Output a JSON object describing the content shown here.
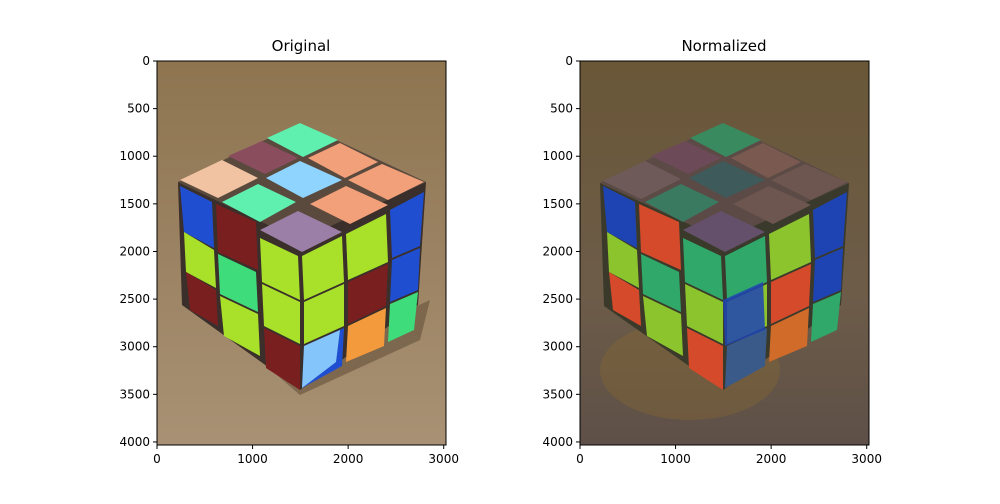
{
  "figure": {
    "panels": [
      {
        "title": "Original",
        "kind": "image",
        "xticks": [
          0,
          1000,
          2000,
          3000
        ],
        "yticks": [
          0,
          500,
          1000,
          1500,
          2000,
          2500,
          3000,
          3500,
          4000
        ],
        "xlim": [
          0,
          3024
        ],
        "ylim": [
          4032,
          0
        ]
      },
      {
        "title": "Normalized",
        "kind": "image",
        "xticks": [
          0,
          1000,
          2000,
          3000
        ],
        "yticks": [
          0,
          500,
          1000,
          1500,
          2000,
          2500,
          3000,
          3500,
          4000
        ],
        "xlim": [
          0,
          3024
        ],
        "ylim": [
          4032,
          0
        ]
      }
    ]
  },
  "chart_data": [
    {
      "type": "image",
      "title": "Original",
      "xlabel": "",
      "ylabel": "",
      "xlim": [
        0,
        3024
      ],
      "ylim": [
        4032,
        0
      ],
      "xticks": [
        0,
        1000,
        2000,
        3000
      ],
      "yticks": [
        0,
        500,
        1000,
        1500,
        2000,
        2500,
        3000,
        3500,
        4000
      ],
      "grid": false,
      "colors": {
        "background": "#9a8463",
        "blue": "#1f4fd0",
        "lime": "#a8e02a",
        "green": "#3edc7a",
        "maroon": "#7a1f1f",
        "peach": "#f2a07a",
        "mint": "#5ff0b0",
        "lavender": "#9c7fa6",
        "lightblue": "#8fd3ff",
        "orange": "#f39a3c"
      }
    },
    {
      "type": "image",
      "title": "Normalized",
      "xlabel": "",
      "ylabel": "",
      "xlim": [
        0,
        3024
      ],
      "ylim": [
        4032,
        0
      ],
      "xticks": [
        0,
        1000,
        2000,
        3000
      ],
      "yticks": [
        0,
        500,
        1000,
        1500,
        2000,
        2500,
        3000,
        3500,
        4000
      ],
      "grid": false,
      "colors": {
        "background": "#6b5a45",
        "blue": "#1e44b4",
        "lime": "#8bc42c",
        "green": "#2fa86a",
        "maroon": "#d54a2a",
        "top": "#7a5f5a",
        "top_green": "#3a8a60",
        "orange": "#d06b2a"
      }
    }
  ]
}
